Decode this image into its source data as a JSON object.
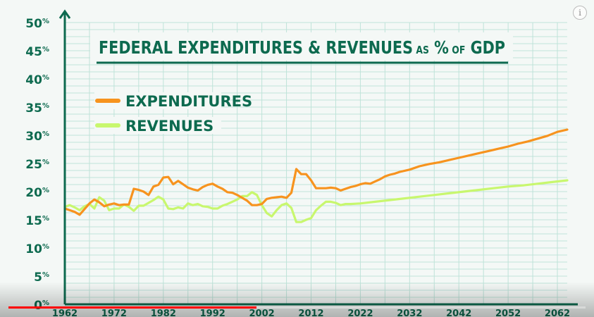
{
  "overlay": {
    "info_icon": "info-icon",
    "info_glyph": "i",
    "progress": 0.43
  },
  "colors": {
    "axis": "#0d6a4f",
    "grid": "#bfe3d9",
    "expenditures": "#f7931e",
    "revenues": "#c8f76e",
    "background": "#f4f8f6"
  },
  "chart_data": {
    "type": "line",
    "title_parts": [
      {
        "text": "FEDERAL EXPENDITURES & REVENUES",
        "size": "large"
      },
      {
        "text": "AS",
        "size": "small"
      },
      {
        "text": "%",
        "size": "large"
      },
      {
        "text": "OF",
        "size": "small"
      },
      {
        "text": "GDP",
        "size": "large"
      }
    ],
    "xlabel": "",
    "ylabel": "",
    "xlim": [
      1962,
      2064
    ],
    "ylim": [
      0,
      50
    ],
    "y_ticks": [
      {
        "value": 0,
        "num": "0",
        "unit": "%"
      },
      {
        "value": 5,
        "num": "5",
        "unit": "%"
      },
      {
        "value": 10,
        "num": "10",
        "unit": "%"
      },
      {
        "value": 15,
        "num": "15",
        "unit": "%"
      },
      {
        "value": 20,
        "num": "20",
        "unit": "%"
      },
      {
        "value": 25,
        "num": "25",
        "unit": "%"
      },
      {
        "value": 30,
        "num": "30",
        "unit": "%"
      },
      {
        "value": 35,
        "num": "35",
        "unit": "%"
      },
      {
        "value": 40,
        "num": "40",
        "unit": "%"
      },
      {
        "value": 45,
        "num": "45",
        "unit": "%"
      },
      {
        "value": 50,
        "num": "50",
        "unit": "%"
      }
    ],
    "x_ticks": [
      {
        "value": 1962,
        "label": "1962"
      },
      {
        "value": 1972,
        "label": "1972"
      },
      {
        "value": 1982,
        "label": "1982"
      },
      {
        "value": 1992,
        "label": "1992"
      },
      {
        "value": 2002,
        "label": "2002"
      },
      {
        "value": 2012,
        "label": "2012"
      },
      {
        "value": 2022,
        "label": "2022"
      },
      {
        "value": 2032,
        "label": "2032"
      },
      {
        "value": 2042,
        "label": "2042"
      },
      {
        "value": 2052,
        "label": "2052"
      },
      {
        "value": 2062,
        "label": "2062"
      }
    ],
    "grid": true,
    "legend_position": "top-left",
    "series": [
      {
        "name": "EXPENDITURES",
        "color": "#f7931e",
        "x": [
          1962,
          1963,
          1964,
          1965,
          1966,
          1967,
          1968,
          1969,
          1970,
          1971,
          1972,
          1973,
          1974,
          1975,
          1976,
          1977,
          1978,
          1979,
          1980,
          1981,
          1982,
          1983,
          1984,
          1985,
          1986,
          1987,
          1988,
          1989,
          1990,
          1991,
          1992,
          1993,
          1994,
          1995,
          1996,
          1997,
          1998,
          1999,
          2000,
          2001,
          2002,
          2003,
          2004,
          2005,
          2006,
          2007,
          2008,
          2009,
          2010,
          2011,
          2012,
          2013,
          2014,
          2015,
          2016,
          2017,
          2018,
          2019,
          2020,
          2021,
          2022,
          2023,
          2024,
          2025,
          2026,
          2027,
          2028,
          2029,
          2030,
          2032,
          2034,
          2036,
          2038,
          2040,
          2042,
          2044,
          2046,
          2048,
          2050,
          2052,
          2054,
          2056,
          2058,
          2060,
          2062,
          2064
        ],
        "values": [
          17.0,
          16.7,
          16.4,
          15.9,
          16.9,
          17.9,
          18.6,
          18.1,
          17.4,
          17.7,
          17.9,
          17.6,
          17.7,
          17.7,
          20.5,
          20.3,
          20.0,
          19.4,
          20.9,
          21.2,
          22.5,
          22.6,
          21.3,
          21.9,
          21.3,
          20.7,
          20.4,
          20.2,
          20.8,
          21.2,
          21.4,
          20.9,
          20.5,
          19.9,
          19.8,
          19.4,
          18.9,
          18.4,
          17.6,
          17.6,
          17.8,
          18.7,
          18.9,
          19.0,
          19.1,
          18.9,
          19.8,
          24.0,
          23.1,
          23.1,
          22.0,
          20.6,
          20.6,
          20.6,
          20.7,
          20.6,
          20.2,
          20.5,
          20.8,
          21.0,
          21.3,
          21.5,
          21.4,
          21.8,
          22.2,
          22.7,
          23.0,
          23.2,
          23.5,
          23.9,
          24.5,
          24.9,
          25.2,
          25.6,
          26.0,
          26.4,
          26.8,
          27.2,
          27.6,
          28.0,
          28.5,
          28.9,
          29.4,
          29.9,
          30.6,
          31.0
        ]
      },
      {
        "name": "REVENUES",
        "color": "#c8f76e",
        "x": [
          1962,
          1963,
          1964,
          1965,
          1966,
          1967,
          1968,
          1969,
          1970,
          1971,
          1972,
          1973,
          1974,
          1975,
          1976,
          1977,
          1978,
          1979,
          1980,
          1981,
          1982,
          1983,
          1984,
          1985,
          1986,
          1987,
          1988,
          1989,
          1990,
          1991,
          1992,
          1993,
          1994,
          1995,
          1996,
          1997,
          1998,
          1999,
          2000,
          2001,
          2002,
          2003,
          2004,
          2005,
          2006,
          2007,
          2008,
          2009,
          2010,
          2011,
          2012,
          2013,
          2014,
          2015,
          2016,
          2017,
          2018,
          2019,
          2020,
          2022,
          2025,
          2028,
          2031,
          2034,
          2037,
          2040,
          2043,
          2046,
          2049,
          2052,
          2055,
          2058,
          2061,
          2064
        ],
        "values": [
          17.3,
          17.6,
          17.2,
          16.7,
          17.4,
          17.8,
          17.0,
          19.0,
          18.4,
          16.7,
          17.0,
          17.0,
          17.7,
          17.3,
          16.6,
          17.5,
          17.5,
          18.0,
          18.5,
          19.1,
          18.6,
          17.0,
          16.9,
          17.2,
          17.0,
          17.9,
          17.6,
          17.8,
          17.4,
          17.3,
          17.0,
          17.0,
          17.5,
          17.8,
          18.2,
          18.6,
          19.2,
          19.2,
          19.9,
          19.4,
          17.6,
          16.2,
          15.6,
          16.7,
          17.6,
          17.9,
          17.1,
          14.6,
          14.6,
          15.0,
          15.3,
          16.7,
          17.5,
          18.2,
          18.2,
          18.0,
          17.6,
          17.8,
          17.8,
          17.9,
          18.2,
          18.5,
          18.8,
          19.1,
          19.4,
          19.7,
          20.0,
          20.3,
          20.6,
          20.9,
          21.1,
          21.4,
          21.7,
          22.0
        ]
      }
    ]
  }
}
